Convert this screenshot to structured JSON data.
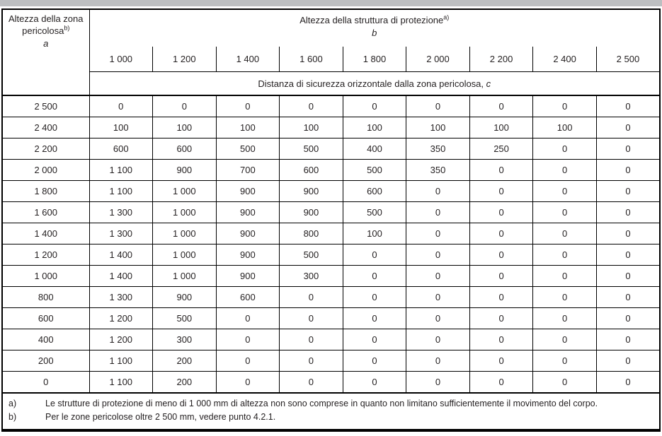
{
  "colors": {
    "top_strip": "#bdbfc1",
    "border": "#000000",
    "text": "#231f20",
    "background": "#ffffff"
  },
  "table": {
    "corner": {
      "text": "Altezza della zona pericolosa",
      "sup": "b)",
      "var": "a"
    },
    "top_header": {
      "text": "Altezza della struttura di protezione",
      "sup": "a)",
      "var": "b"
    },
    "col_headers": [
      "1 000",
      "1 200",
      "1 400",
      "1 600",
      "1 800",
      "2 000",
      "2 200",
      "2 400",
      "2 500"
    ],
    "subheader": "Distanza di sicurezza orizzontale dalla zona pericolosa, ",
    "subheader_var": "c",
    "rows": [
      {
        "a": "2 500",
        "c": [
          "0",
          "0",
          "0",
          "0",
          "0",
          "0",
          "0",
          "0",
          "0"
        ]
      },
      {
        "a": "2 400",
        "c": [
          "100",
          "100",
          "100",
          "100",
          "100",
          "100",
          "100",
          "100",
          "0"
        ]
      },
      {
        "a": "2 200",
        "c": [
          "600",
          "600",
          "500",
          "500",
          "400",
          "350",
          "250",
          "0",
          "0"
        ]
      },
      {
        "a": "2 000",
        "c": [
          "1 100",
          "900",
          "700",
          "600",
          "500",
          "350",
          "0",
          "0",
          "0"
        ]
      },
      {
        "a": "1 800",
        "c": [
          "1 100",
          "1 000",
          "900",
          "900",
          "600",
          "0",
          "0",
          "0",
          "0"
        ]
      },
      {
        "a": "1 600",
        "c": [
          "1 300",
          "1 000",
          "900",
          "900",
          "500",
          "0",
          "0",
          "0",
          "0"
        ]
      },
      {
        "a": "1 400",
        "c": [
          "1 300",
          "1 000",
          "900",
          "800",
          "100",
          "0",
          "0",
          "0",
          "0"
        ]
      },
      {
        "a": "1 200",
        "c": [
          "1 400",
          "1 000",
          "900",
          "500",
          "0",
          "0",
          "0",
          "0",
          "0"
        ]
      },
      {
        "a": "1 000",
        "c": [
          "1 400",
          "1 000",
          "900",
          "300",
          "0",
          "0",
          "0",
          "0",
          "0"
        ]
      },
      {
        "a": "800",
        "c": [
          "1 300",
          "900",
          "600",
          "0",
          "0",
          "0",
          "0",
          "0",
          "0"
        ]
      },
      {
        "a": "600",
        "c": [
          "1 200",
          "500",
          "0",
          "0",
          "0",
          "0",
          "0",
          "0",
          "0"
        ]
      },
      {
        "a": "400",
        "c": [
          "1 200",
          "300",
          "0",
          "0",
          "0",
          "0",
          "0",
          "0",
          "0"
        ]
      },
      {
        "a": "200",
        "c": [
          "1 100",
          "200",
          "0",
          "0",
          "0",
          "0",
          "0",
          "0",
          "0"
        ]
      },
      {
        "a": "0",
        "c": [
          "1 100",
          "200",
          "0",
          "0",
          "0",
          "0",
          "0",
          "0",
          "0"
        ]
      }
    ],
    "footnotes": [
      {
        "marker": "a)",
        "text": "Le strutture di protezione di meno di 1 000 mm di altezza non sono comprese in quanto non limitano sufficientemente il movimento del corpo."
      },
      {
        "marker": "b)",
        "text": "Per le zone pericolose oltre 2 500 mm, vedere punto 4.2.1."
      }
    ]
  }
}
